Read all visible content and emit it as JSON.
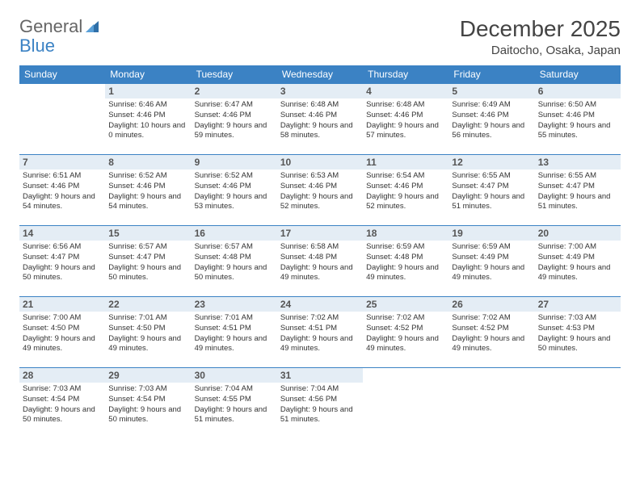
{
  "logo": {
    "text1": "General",
    "text2": "Blue"
  },
  "title": "December 2025",
  "location": "Daitocho, Osaka, Japan",
  "colors": {
    "header_bg": "#3b82c4",
    "daynum_bg": "#e4edf5",
    "border": "#3b82c4"
  },
  "weekdays": [
    "Sunday",
    "Monday",
    "Tuesday",
    "Wednesday",
    "Thursday",
    "Friday",
    "Saturday"
  ],
  "weeks": [
    [
      null,
      {
        "d": "1",
        "sr": "6:46 AM",
        "ss": "4:46 PM",
        "dl": "10 hours and 0 minutes."
      },
      {
        "d": "2",
        "sr": "6:47 AM",
        "ss": "4:46 PM",
        "dl": "9 hours and 59 minutes."
      },
      {
        "d": "3",
        "sr": "6:48 AM",
        "ss": "4:46 PM",
        "dl": "9 hours and 58 minutes."
      },
      {
        "d": "4",
        "sr": "6:48 AM",
        "ss": "4:46 PM",
        "dl": "9 hours and 57 minutes."
      },
      {
        "d": "5",
        "sr": "6:49 AM",
        "ss": "4:46 PM",
        "dl": "9 hours and 56 minutes."
      },
      {
        "d": "6",
        "sr": "6:50 AM",
        "ss": "4:46 PM",
        "dl": "9 hours and 55 minutes."
      }
    ],
    [
      {
        "d": "7",
        "sr": "6:51 AM",
        "ss": "4:46 PM",
        "dl": "9 hours and 54 minutes."
      },
      {
        "d": "8",
        "sr": "6:52 AM",
        "ss": "4:46 PM",
        "dl": "9 hours and 54 minutes."
      },
      {
        "d": "9",
        "sr": "6:52 AM",
        "ss": "4:46 PM",
        "dl": "9 hours and 53 minutes."
      },
      {
        "d": "10",
        "sr": "6:53 AM",
        "ss": "4:46 PM",
        "dl": "9 hours and 52 minutes."
      },
      {
        "d": "11",
        "sr": "6:54 AM",
        "ss": "4:46 PM",
        "dl": "9 hours and 52 minutes."
      },
      {
        "d": "12",
        "sr": "6:55 AM",
        "ss": "4:47 PM",
        "dl": "9 hours and 51 minutes."
      },
      {
        "d": "13",
        "sr": "6:55 AM",
        "ss": "4:47 PM",
        "dl": "9 hours and 51 minutes."
      }
    ],
    [
      {
        "d": "14",
        "sr": "6:56 AM",
        "ss": "4:47 PM",
        "dl": "9 hours and 50 minutes."
      },
      {
        "d": "15",
        "sr": "6:57 AM",
        "ss": "4:47 PM",
        "dl": "9 hours and 50 minutes."
      },
      {
        "d": "16",
        "sr": "6:57 AM",
        "ss": "4:48 PM",
        "dl": "9 hours and 50 minutes."
      },
      {
        "d": "17",
        "sr": "6:58 AM",
        "ss": "4:48 PM",
        "dl": "9 hours and 49 minutes."
      },
      {
        "d": "18",
        "sr": "6:59 AM",
        "ss": "4:48 PM",
        "dl": "9 hours and 49 minutes."
      },
      {
        "d": "19",
        "sr": "6:59 AM",
        "ss": "4:49 PM",
        "dl": "9 hours and 49 minutes."
      },
      {
        "d": "20",
        "sr": "7:00 AM",
        "ss": "4:49 PM",
        "dl": "9 hours and 49 minutes."
      }
    ],
    [
      {
        "d": "21",
        "sr": "7:00 AM",
        "ss": "4:50 PM",
        "dl": "9 hours and 49 minutes."
      },
      {
        "d": "22",
        "sr": "7:01 AM",
        "ss": "4:50 PM",
        "dl": "9 hours and 49 minutes."
      },
      {
        "d": "23",
        "sr": "7:01 AM",
        "ss": "4:51 PM",
        "dl": "9 hours and 49 minutes."
      },
      {
        "d": "24",
        "sr": "7:02 AM",
        "ss": "4:51 PM",
        "dl": "9 hours and 49 minutes."
      },
      {
        "d": "25",
        "sr": "7:02 AM",
        "ss": "4:52 PM",
        "dl": "9 hours and 49 minutes."
      },
      {
        "d": "26",
        "sr": "7:02 AM",
        "ss": "4:52 PM",
        "dl": "9 hours and 49 minutes."
      },
      {
        "d": "27",
        "sr": "7:03 AM",
        "ss": "4:53 PM",
        "dl": "9 hours and 50 minutes."
      }
    ],
    [
      {
        "d": "28",
        "sr": "7:03 AM",
        "ss": "4:54 PM",
        "dl": "9 hours and 50 minutes."
      },
      {
        "d": "29",
        "sr": "7:03 AM",
        "ss": "4:54 PM",
        "dl": "9 hours and 50 minutes."
      },
      {
        "d": "30",
        "sr": "7:04 AM",
        "ss": "4:55 PM",
        "dl": "9 hours and 51 minutes."
      },
      {
        "d": "31",
        "sr": "7:04 AM",
        "ss": "4:56 PM",
        "dl": "9 hours and 51 minutes."
      },
      null,
      null,
      null
    ]
  ],
  "labels": {
    "sunrise": "Sunrise: ",
    "sunset": "Sunset: ",
    "daylight": "Daylight: "
  }
}
